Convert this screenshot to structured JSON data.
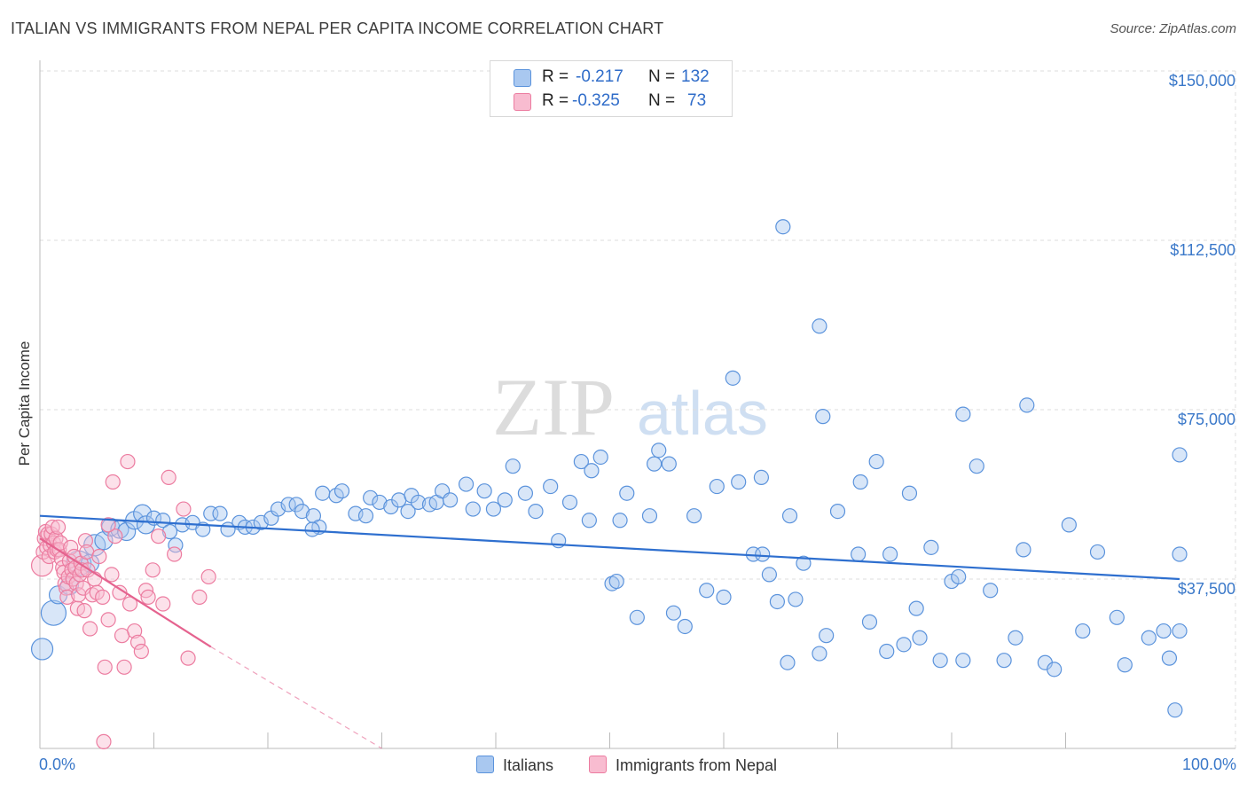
{
  "title": "ITALIAN VS IMMIGRANTS FROM NEPAL PER CAPITA INCOME CORRELATION CHART",
  "source": "Source: ZipAtlas.com",
  "watermark": {
    "zip": "ZIP",
    "atlas": "atlas"
  },
  "legend_top": [
    {
      "r_label": "R =",
      "r_value": "-0.217",
      "n_label": "N =",
      "n_value": "132",
      "color": "#a9c8f0",
      "edge": "#5b93dc"
    },
    {
      "r_label": "R =",
      "r_value": "-0.325",
      "n_label": "N =",
      "n_value": "73",
      "color": "#f8bcd0",
      "edge": "#ec7ca0"
    }
  ],
  "legend_bottom": [
    "Italians",
    "Immigrants from Nepal"
  ],
  "chart_data": {
    "type": "scatter",
    "title": "ITALIAN VS IMMIGRANTS FROM NEPAL PER CAPITA INCOME CORRELATION CHART",
    "xlabel": "",
    "ylabel": "Per Capita Income",
    "xlim": [
      0,
      100
    ],
    "ylim": [
      0,
      150000
    ],
    "x_tick_labels": [
      "0.0%",
      "100.0%"
    ],
    "y_ticks": [
      37500,
      75000,
      112500,
      150000
    ],
    "y_tick_labels": [
      "$37,500",
      "$75,000",
      "$112,500",
      "$150,000"
    ],
    "grid": true,
    "series": [
      {
        "name": "Italians",
        "color": "#a9c8f0",
        "edge": "#5b93dc",
        "trend": {
          "x": [
            0,
            100
          ],
          "y": [
            51500,
            37500
          ],
          "color": "#2e6fcf"
        },
        "points": [
          [
            0.2,
            22000,
            12
          ],
          [
            1.2,
            30000,
            14
          ],
          [
            1.6,
            34000,
            10
          ],
          [
            2.6,
            36000,
            10
          ],
          [
            3.4,
            41000,
            14
          ],
          [
            4.4,
            41000,
            10
          ],
          [
            4.8,
            45000,
            12
          ],
          [
            5.6,
            46000,
            10
          ],
          [
            6.2,
            49000,
            10
          ],
          [
            7.0,
            48500,
            10
          ],
          [
            7.6,
            48000,
            10
          ],
          [
            8.3,
            50500,
            10
          ],
          [
            9.0,
            52000,
            10
          ],
          [
            9.3,
            49500,
            10
          ],
          [
            10.0,
            51000,
            8
          ],
          [
            10.8,
            50500,
            8
          ],
          [
            11.4,
            48000,
            8
          ],
          [
            11.9,
            45000,
            8
          ],
          [
            12.5,
            49500,
            8
          ],
          [
            13.4,
            50000,
            8
          ],
          [
            14.3,
            48500,
            8
          ],
          [
            15.0,
            52000,
            8
          ],
          [
            15.8,
            52000,
            8
          ],
          [
            16.5,
            48500,
            8
          ],
          [
            17.5,
            50000,
            8
          ],
          [
            18.0,
            49000,
            8
          ],
          [
            18.7,
            49000,
            8
          ],
          [
            19.4,
            50000,
            8
          ],
          [
            20.3,
            51000,
            8
          ],
          [
            20.9,
            53000,
            8
          ],
          [
            21.8,
            54000,
            8
          ],
          [
            22.5,
            54000,
            8
          ],
          [
            23.0,
            52500,
            8
          ],
          [
            24.0,
            51500,
            8
          ],
          [
            24.5,
            49000,
            8
          ],
          [
            24.8,
            56500,
            8
          ],
          [
            23.9,
            48500,
            8
          ],
          [
            26.0,
            56000,
            8
          ],
          [
            26.5,
            57000,
            8
          ],
          [
            27.7,
            52000,
            8
          ],
          [
            28.6,
            51500,
            8
          ],
          [
            29.0,
            55500,
            8
          ],
          [
            29.8,
            54500,
            8
          ],
          [
            30.8,
            53500,
            8
          ],
          [
            31.5,
            55000,
            8
          ],
          [
            32.3,
            52500,
            8
          ],
          [
            32.6,
            56000,
            8
          ],
          [
            33.2,
            54500,
            8
          ],
          [
            34.2,
            54000,
            8
          ],
          [
            34.8,
            54500,
            8
          ],
          [
            35.3,
            57000,
            8
          ],
          [
            36.0,
            55000,
            8
          ],
          [
            37.4,
            58500,
            8
          ],
          [
            38.0,
            53000,
            8
          ],
          [
            39.0,
            57000,
            8
          ],
          [
            39.8,
            53000,
            8
          ],
          [
            40.8,
            55000,
            8
          ],
          [
            41.5,
            62500,
            8
          ],
          [
            42.6,
            56500,
            8
          ],
          [
            43.5,
            52500,
            8
          ],
          [
            44.8,
            58000,
            8
          ],
          [
            45.5,
            46000,
            8
          ],
          [
            46.5,
            54500,
            8
          ],
          [
            47.5,
            63500,
            8
          ],
          [
            48.4,
            61500,
            8
          ],
          [
            48.2,
            50500,
            8
          ],
          [
            49.2,
            64500,
            8
          ],
          [
            50.2,
            36500,
            8
          ],
          [
            50.6,
            37000,
            8
          ],
          [
            50.9,
            50500,
            8
          ],
          [
            51.5,
            56500,
            8
          ],
          [
            52.4,
            29000,
            8
          ],
          [
            53.5,
            51500,
            8
          ],
          [
            53.9,
            63000,
            8
          ],
          [
            54.3,
            66000,
            8
          ],
          [
            55.2,
            63000,
            8
          ],
          [
            55.6,
            30000,
            8
          ],
          [
            56.6,
            27000,
            8
          ],
          [
            57.4,
            51500,
            8
          ],
          [
            58.5,
            35000,
            8
          ],
          [
            59.4,
            58000,
            8
          ],
          [
            60.0,
            33500,
            8
          ],
          [
            60.8,
            82000,
            8
          ],
          [
            61.3,
            59000,
            8
          ],
          [
            62.6,
            43000,
            8
          ],
          [
            63.3,
            60000,
            8
          ],
          [
            63.4,
            43000,
            8
          ],
          [
            64.0,
            38500,
            8
          ],
          [
            64.7,
            32500,
            8
          ],
          [
            65.6,
            19000,
            8
          ],
          [
            65.8,
            51500,
            8
          ],
          [
            66.3,
            33000,
            8
          ],
          [
            67.0,
            41000,
            8
          ],
          [
            68.4,
            21000,
            8
          ],
          [
            69.0,
            25000,
            8
          ],
          [
            70.0,
            52500,
            8
          ],
          [
            71.8,
            43000,
            8
          ],
          [
            72.0,
            59000,
            8
          ],
          [
            72.8,
            28000,
            8
          ],
          [
            73.4,
            63500,
            8
          ],
          [
            74.3,
            21500,
            8
          ],
          [
            74.6,
            43000,
            8
          ],
          [
            75.8,
            23000,
            8
          ],
          [
            76.3,
            56500,
            8
          ],
          [
            76.9,
            31000,
            8
          ],
          [
            77.2,
            24500,
            8
          ],
          [
            78.2,
            44500,
            8
          ],
          [
            79.0,
            19500,
            8
          ],
          [
            80.0,
            37000,
            8
          ],
          [
            80.6,
            38000,
            8
          ],
          [
            81.0,
            19500,
            8
          ],
          [
            82.2,
            62500,
            8
          ],
          [
            83.4,
            35000,
            8
          ],
          [
            84.6,
            19500,
            8
          ],
          [
            85.6,
            24500,
            8
          ],
          [
            86.3,
            44000,
            8
          ],
          [
            86.6,
            76000,
            8
          ],
          [
            88.2,
            19000,
            8
          ],
          [
            89.0,
            17500,
            8
          ],
          [
            90.3,
            49500,
            8
          ],
          [
            91.5,
            26000,
            8
          ],
          [
            92.8,
            43500,
            8
          ],
          [
            94.5,
            29000,
            8
          ],
          [
            95.2,
            18500,
            8
          ],
          [
            97.3,
            24500,
            8
          ],
          [
            98.6,
            26000,
            8
          ],
          [
            99.1,
            20000,
            8
          ],
          [
            99.6,
            8500,
            8
          ],
          [
            100.0,
            65000,
            8
          ],
          [
            100.0,
            43000,
            8
          ],
          [
            100.0,
            26000,
            8
          ],
          [
            65.2,
            115500,
            8
          ],
          [
            68.4,
            93500,
            8
          ],
          [
            68.7,
            73500,
            8
          ],
          [
            81.0,
            74000,
            8
          ]
        ]
      },
      {
        "name": "Immigrants from Nepal",
        "color": "#f8bcd0",
        "edge": "#ec7ca0",
        "trend": {
          "x": [
            0,
            15
          ],
          "y": [
            46500,
            22500
          ],
          "color": "#e5638f",
          "dash_to": [
            30,
            0
          ]
        },
        "points": [
          [
            0.2,
            40500,
            12
          ],
          [
            0.3,
            43500,
            8
          ],
          [
            0.4,
            46500,
            8
          ],
          [
            0.5,
            48000,
            8
          ],
          [
            0.6,
            44500,
            8
          ],
          [
            0.7,
            47500,
            8
          ],
          [
            0.8,
            42500,
            8
          ],
          [
            0.9,
            45000,
            8
          ],
          [
            1.0,
            47500,
            8
          ],
          [
            1.1,
            49000,
            8
          ],
          [
            1.2,
            45500,
            8
          ],
          [
            1.3,
            43500,
            8
          ],
          [
            1.4,
            46500,
            8
          ],
          [
            1.5,
            44000,
            8
          ],
          [
            1.6,
            49000,
            8
          ],
          [
            1.7,
            44000,
            8
          ],
          [
            1.8,
            45500,
            8
          ],
          [
            1.9,
            42000,
            8
          ],
          [
            2.0,
            40000,
            8
          ],
          [
            2.1,
            39000,
            8
          ],
          [
            2.2,
            36500,
            8
          ],
          [
            2.3,
            35500,
            8
          ],
          [
            2.4,
            33500,
            8
          ],
          [
            2.5,
            38000,
            8
          ],
          [
            2.6,
            41500,
            8
          ],
          [
            2.7,
            44500,
            8
          ],
          [
            2.8,
            39500,
            8
          ],
          [
            2.9,
            37500,
            8
          ],
          [
            3.0,
            42500,
            8
          ],
          [
            3.1,
            40000,
            8
          ],
          [
            3.2,
            36500,
            8
          ],
          [
            3.3,
            31000,
            8
          ],
          [
            3.4,
            34000,
            8
          ],
          [
            3.5,
            38500,
            8
          ],
          [
            3.6,
            41000,
            8
          ],
          [
            3.7,
            39500,
            8
          ],
          [
            3.8,
            35500,
            8
          ],
          [
            3.9,
            30500,
            8
          ],
          [
            4.0,
            46000,
            8
          ],
          [
            4.1,
            43500,
            8
          ],
          [
            4.2,
            39500,
            8
          ],
          [
            4.4,
            26500,
            8
          ],
          [
            4.6,
            34000,
            8
          ],
          [
            4.8,
            37500,
            8
          ],
          [
            5.0,
            34500,
            8
          ],
          [
            5.2,
            42500,
            8
          ],
          [
            5.5,
            33500,
            8
          ],
          [
            6.0,
            28500,
            8
          ],
          [
            6.3,
            38500,
            8
          ],
          [
            6.6,
            47000,
            8
          ],
          [
            7.0,
            34500,
            8
          ],
          [
            7.4,
            18000,
            8
          ],
          [
            7.7,
            63500,
            8
          ],
          [
            7.9,
            32000,
            8
          ],
          [
            8.3,
            26000,
            8
          ],
          [
            8.6,
            23500,
            8
          ],
          [
            8.9,
            21500,
            8
          ],
          [
            9.3,
            35000,
            8
          ],
          [
            9.5,
            33500,
            8
          ],
          [
            9.9,
            39500,
            8
          ],
          [
            10.4,
            47000,
            8
          ],
          [
            10.8,
            32000,
            8
          ],
          [
            11.3,
            60000,
            8
          ],
          [
            11.8,
            43000,
            8
          ],
          [
            12.6,
            53000,
            8
          ],
          [
            13.0,
            20000,
            8
          ],
          [
            14.0,
            33500,
            8
          ],
          [
            14.8,
            38000,
            8
          ],
          [
            6.4,
            59000,
            8
          ],
          [
            6.0,
            49500,
            8
          ],
          [
            7.2,
            25000,
            8
          ],
          [
            5.7,
            18000,
            8
          ],
          [
            5.6,
            1500,
            8
          ]
        ]
      }
    ]
  }
}
